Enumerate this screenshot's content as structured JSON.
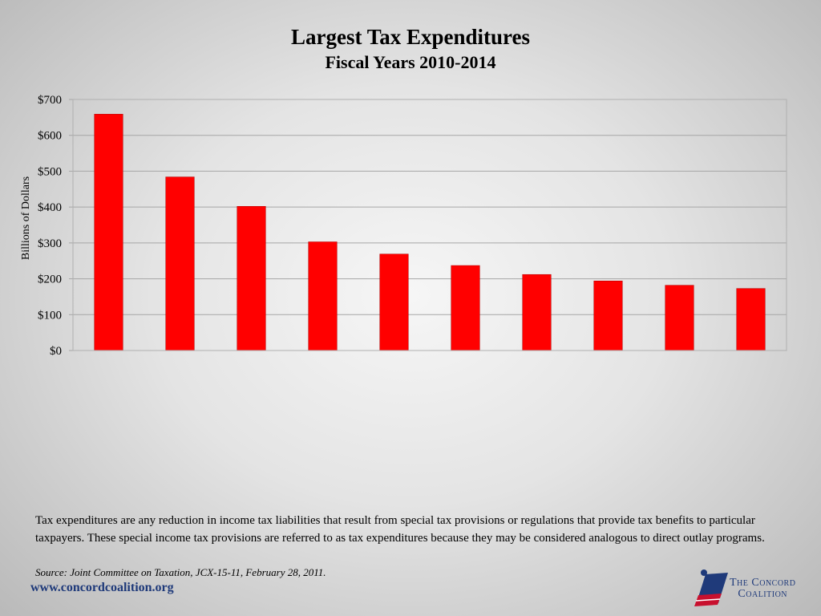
{
  "title": "Largest Tax Expenditures",
  "subtitle": "Fiscal Years 2010-2014",
  "description": "Tax expenditures are any reduction in income tax liabilities that result from special tax provisions or regulations that provide tax benefits to particular taxpayers.  These special income tax provisions are referred to as tax expenditures because they may be considered analogous to direct outlay programs.",
  "source": "Source:  Joint Committee on Taxation, JCX-15-11, February 28, 2011.",
  "website": "www.concordcoalition.org",
  "logo": {
    "line1": "The Concord",
    "line2": "Coalition"
  },
  "colors": {
    "bar": "#ff0000",
    "grid": "#a6a6a6",
    "brand": "#1f3a7a",
    "logo_red": "#c8102e"
  },
  "chart_data": {
    "type": "bar",
    "categories": [
      "",
      "",
      "",
      "",
      "",
      "",
      "",
      "",
      "",
      ""
    ],
    "values": [
      659,
      484,
      402,
      303,
      269,
      237,
      212,
      194,
      182,
      173
    ],
    "ylabel": "Billions of Dollars",
    "ylim": [
      0,
      700
    ],
    "yticks": [
      0,
      100,
      200,
      300,
      400,
      500,
      600,
      700
    ],
    "ytick_labels": [
      "$0",
      "$100",
      "$200",
      "$300",
      "$400",
      "$500",
      "$600",
      "$700"
    ],
    "grid": true,
    "legend": false
  }
}
